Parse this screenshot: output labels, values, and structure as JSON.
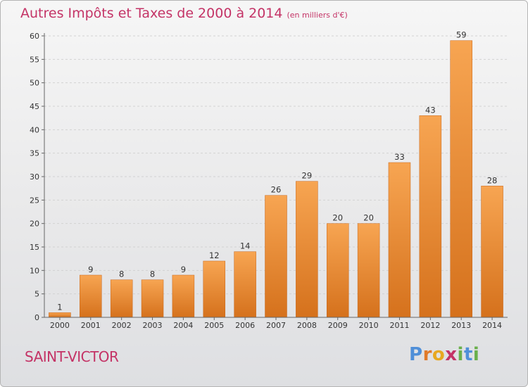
{
  "title": "Autres Impôts et Taxes de 2000 à 2014",
  "title_unit": "(en milliers d'€)",
  "commune": "SAINT-VICTOR",
  "logo": [
    "P",
    "r",
    "o",
    "x",
    "i",
    "t",
    "i"
  ],
  "colors": {
    "accent": "#c43366",
    "bar_top": "#f7a552",
    "bar_bottom": "#d5711c",
    "logo": [
      "#4f8fd8",
      "#e07a2a",
      "#e8a820",
      "#c43366",
      "#6ab04c",
      "#4f8fd8",
      "#6ab04c"
    ]
  },
  "chart_data": {
    "type": "bar",
    "categories": [
      "2000",
      "2001",
      "2002",
      "2003",
      "2004",
      "2005",
      "2006",
      "2007",
      "2008",
      "2009",
      "2010",
      "2011",
      "2012",
      "2013",
      "2014"
    ],
    "values": [
      1,
      9,
      8,
      8,
      9,
      12,
      14,
      26,
      29,
      20,
      20,
      33,
      43,
      59,
      28
    ],
    "ylim": [
      0,
      60
    ],
    "yticks": [
      0,
      5,
      10,
      15,
      20,
      25,
      30,
      35,
      40,
      45,
      50,
      55,
      60
    ],
    "grid": true,
    "xlabel": "",
    "ylabel": ""
  }
}
